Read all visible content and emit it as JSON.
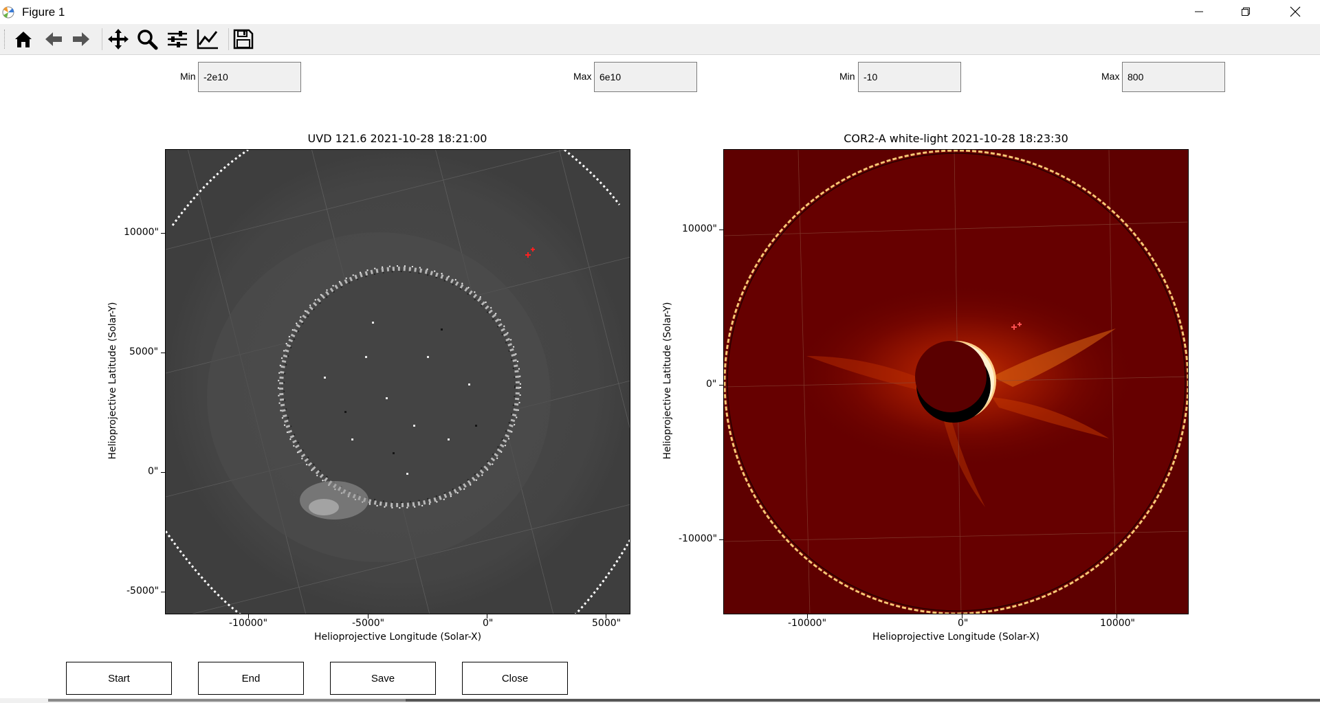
{
  "window": {
    "title": "Figure 1"
  },
  "toolbar": {
    "buttons": [
      {
        "icon": "home-icon"
      },
      {
        "icon": "back-arrow-icon"
      },
      {
        "icon": "forward-arrow-icon"
      },
      {
        "icon": "pan-move-icon"
      },
      {
        "icon": "zoom-magnifier-icon"
      },
      {
        "icon": "configure-subplots-icon"
      },
      {
        "icon": "edit-axis-curve-icon"
      },
      {
        "icon": "save-floppy-icon"
      }
    ]
  },
  "controls": {
    "left_min_label": "Min",
    "left_min_value": "-2e10",
    "left_max_label": "Max",
    "left_max_value": "6e10",
    "right_min_label": "Min",
    "right_min_value": "-10",
    "right_max_label": "Max",
    "right_max_value": "800"
  },
  "left_plot": {
    "title": "UVD 121.6  2021-10-28 18:21:00",
    "xlabel": "Helioprojective Longitude (Solar-X)",
    "ylabel": "Helioprojective Latitude (Solar-Y)",
    "xticks": [
      "-10000\"",
      "-5000\"",
      "0\"",
      "5000\""
    ],
    "yticks": [
      "10000\"",
      "5000\"",
      "0\"",
      "-5000\""
    ]
  },
  "right_plot": {
    "title": "COR2-A white-light 2021-10-28 18:23:30",
    "xlabel": "Helioprojective Longitude (Solar-X)",
    "ylabel": "Helioprojective Latitude (Solar-Y)",
    "xticks": [
      "-10000\"",
      "0\"",
      "10000\""
    ],
    "yticks": [
      "10000\"",
      "0\"",
      "-10000\""
    ]
  },
  "buttons": {
    "start": "Start",
    "end": "End",
    "save": "Save",
    "close": "Close"
  },
  "colors": {
    "uv_background": "#474747",
    "cor2_background": "#5e0000",
    "cor2_bright": "#ffd27a"
  }
}
